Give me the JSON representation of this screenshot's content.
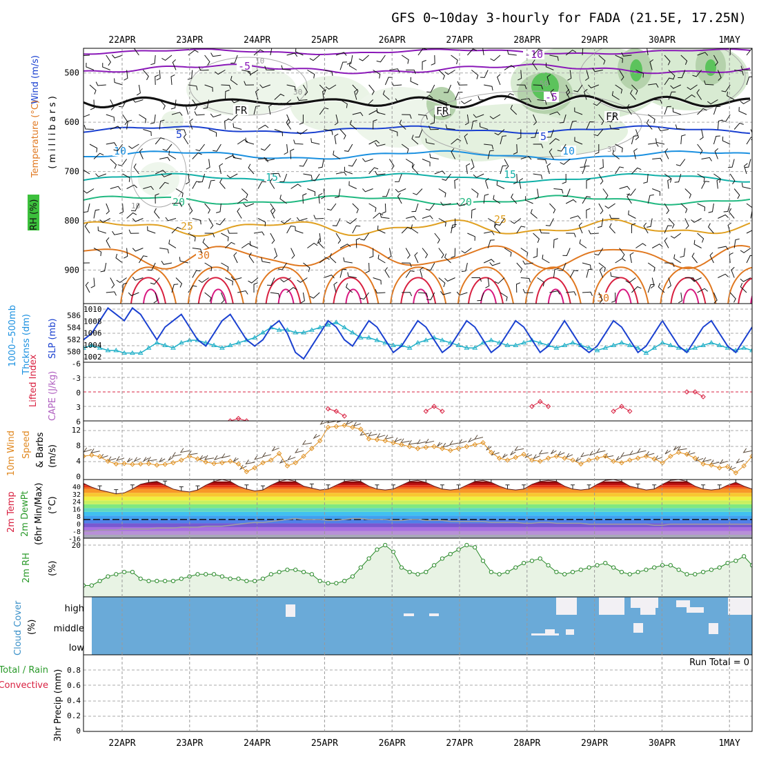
{
  "title": "GFS 0~10day 3-hourly for FADA (21.5E, 17.25N)",
  "dates": [
    "22APR",
    "23APR",
    "24APR",
    "25APR",
    "26APR",
    "27APR",
    "28APR",
    "29APR",
    "30APR",
    "1MAY"
  ],
  "colors": {
    "purple": "#8a18b8",
    "black": "#111111",
    "blue": "#1a40d0",
    "skyblue": "#1a90e0",
    "teal": "#10b0a8",
    "seagreen": "#20b880",
    "gold": "#e0a020",
    "orange": "#e07820",
    "red": "#d82040",
    "magenta": "#d81880",
    "cloud": "#6aaad8",
    "rhfill": "#e8f3e4"
  },
  "panels": {
    "upper": {
      "ylabel_wind": "Wind (m/s)",
      "ylabel_temp": "Temperature (°C)",
      "ylabel_rh": "RH (%)",
      "ylabel_mb": "(millibars)",
      "yticks": [
        "500",
        "600",
        "700",
        "800",
        "900"
      ],
      "temp_labels": [
        "-10",
        "-5",
        "FR",
        "FR",
        "FR",
        "-5",
        "5",
        "5",
        "10",
        "10",
        "15",
        "15",
        "20",
        "20",
        "25",
        "25",
        "30",
        "30"
      ],
      "rh_labels": [
        "10",
        "30",
        "50",
        "10",
        "30"
      ]
    },
    "pressure": {
      "ylabel_thk": "1000~500mb",
      "ylabel_thk2": "Thcknss (dm)",
      "ylabel_slp": "SLP (mb)",
      "ticks_left": [
        "586",
        "584",
        "582",
        "580"
      ],
      "ticks_right": [
        "1010",
        "1008",
        "1006",
        "1004",
        "1002"
      ]
    },
    "li": {
      "ylabel_li": "Lifted Index",
      "ylabel_cape": "CAPE (J/kg)",
      "ticks": [
        "-6",
        "-3",
        "0",
        "3",
        "6"
      ]
    },
    "wind10": {
      "ylabel1": "10m Wind",
      "ylabel2": "Speed",
      "ylabel3": "& Barbs",
      "ylabel4": "(m/s)",
      "ticks": [
        "12",
        "8",
        "4",
        "0"
      ]
    },
    "temp2m": {
      "ylabel1": "2m Temp",
      "ylabel2": "2m DewPt",
      "ylabel3": "(6hr Min/Max)",
      "ylabel4": "(°C)",
      "ticks": [
        "40",
        "32",
        "24",
        "16",
        "8",
        "0",
        "-8",
        "-16"
      ]
    },
    "rh2m": {
      "ylabel1": "2m RH",
      "ylabel2": "(%)",
      "ticks": [
        "20"
      ]
    },
    "cloud": {
      "ylabel1": "Cloud Cover",
      "ylabel2": "(%)",
      "levels": [
        "high",
        "middle",
        "low"
      ]
    },
    "precip": {
      "ylabel1": "Total / Rain",
      "ylabel2": "Convective",
      "ylabel3": "3hr Precip (mm)",
      "ticks": [
        "0.8",
        "0.6",
        "0.4",
        "0.2",
        "0"
      ],
      "run_total": "Run Total = 0"
    }
  },
  "chart_data": {
    "type": "line",
    "x_unit": "3-hourly steps from 21APR 12Z",
    "slp_mb": [
      1005,
      1006,
      1008,
      1010,
      1009,
      1008,
      1010,
      1009,
      1007,
      1005,
      1007,
      1008,
      1009,
      1007,
      1005,
      1004,
      1006,
      1008,
      1009,
      1007,
      1005,
      1004,
      1005,
      1007,
      1008,
      1006,
      1003,
      1002,
      1004,
      1006,
      1008,
      1007,
      1005,
      1004,
      1006,
      1008,
      1007,
      1005,
      1003,
      1004,
      1006,
      1008,
      1007,
      1005,
      1003,
      1004,
      1006,
      1008,
      1007,
      1005,
      1003,
      1004,
      1006,
      1008,
      1007,
      1005,
      1003,
      1004,
      1006,
      1008,
      1006,
      1004,
      1003,
      1004,
      1006,
      1008,
      1007,
      1005,
      1003,
      1004,
      1006,
      1008,
      1006,
      1004,
      1003,
      1005,
      1007,
      1008,
      1006,
      1004,
      1003,
      1005,
      1007
    ],
    "thickness_dm": [
      582,
      582.5,
      582,
      581.5,
      581.5,
      581,
      581,
      581,
      582,
      583,
      582.5,
      582,
      583,
      583.5,
      583.5,
      583,
      582.5,
      582,
      582.5,
      583,
      583.5,
      584,
      585,
      586,
      585.5,
      585.5,
      585,
      585,
      585.5,
      586,
      586.5,
      587,
      586,
      585,
      584,
      584,
      583.5,
      583,
      582.5,
      582.5,
      582,
      583,
      583.5,
      584,
      583.5,
      583,
      582.5,
      582,
      582,
      583,
      583.5,
      583,
      582.5,
      582.5,
      583,
      583.5,
      583,
      582.5,
      582,
      582.5,
      583,
      582.5,
      582,
      581.5,
      582,
      582.5,
      583,
      582.5,
      582,
      581,
      582,
      583,
      582.5,
      582,
      581.5,
      582,
      582.5,
      583,
      582.5,
      582,
      581.5,
      582,
      581.5
    ],
    "lifted_index": [
      null,
      null,
      null,
      null,
      null,
      null,
      null,
      null,
      null,
      null,
      null,
      null,
      null,
      null,
      null,
      null,
      null,
      null,
      6,
      5.5,
      6,
      null,
      null,
      null,
      null,
      null,
      null,
      null,
      null,
      null,
      3.5,
      4,
      5,
      null,
      null,
      null,
      null,
      null,
      null,
      null,
      null,
      null,
      4,
      3,
      4,
      null,
      null,
      null,
      null,
      null,
      null,
      null,
      null,
      null,
      null,
      3,
      2,
      3,
      null,
      null,
      null,
      null,
      null,
      null,
      null,
      4,
      3,
      4,
      null,
      null,
      null,
      null,
      null,
      null,
      0,
      0,
      1,
      null,
      null,
      null,
      null,
      null,
      null
    ],
    "wind10_ms": [
      5.5,
      5.8,
      5.4,
      4.2,
      3.5,
      3.6,
      3.4,
      3.5,
      3.6,
      3.2,
      3.4,
      3.8,
      4.5,
      5.5,
      4.8,
      4.0,
      3.6,
      3.8,
      4.2,
      3.5,
      1.5,
      2.5,
      3.8,
      4.5,
      6.2,
      3.0,
      3.8,
      5.5,
      7.5,
      9.5,
      13,
      13.2,
      13.5,
      13,
      12.5,
      10,
      9.8,
      9.5,
      9,
      8.5,
      8,
      7.5,
      7.8,
      8,
      7.5,
      7,
      7.5,
      8,
      8.5,
      9,
      6.5,
      5,
      4.5,
      5.2,
      6,
      4.5,
      4.2,
      5,
      5.5,
      5,
      4.5,
      3.5,
      4.5,
      5,
      5.5,
      4.2,
      3.8,
      4.5,
      5,
      5.5,
      4.8,
      3.8,
      5.5,
      6.5,
      6,
      5,
      3.5,
      3.2,
      2.5,
      2.8,
      1.2,
      3,
      5.5
    ],
    "temp2m_c": [
      38,
      34,
      31,
      29,
      27,
      28,
      32,
      37,
      39,
      40,
      36,
      32,
      30,
      29,
      31,
      36,
      40,
      42,
      40,
      35,
      32,
      30,
      31,
      36,
      40,
      42,
      40,
      35,
      33,
      31,
      32,
      36,
      40,
      41,
      40,
      35,
      32,
      31,
      32,
      36,
      40,
      41,
      39,
      35,
      32,
      31,
      32,
      36,
      40,
      41,
      39,
      35,
      32,
      31,
      32,
      37,
      40,
      41,
      40,
      35,
      32,
      31,
      32,
      37,
      41,
      42,
      40,
      35,
      33,
      31,
      32,
      37,
      41,
      42,
      40,
      35,
      32,
      31,
      32,
      36,
      39,
      35,
      32
    ],
    "dewpt2m_c": [
      -12,
      -12,
      -11,
      -11,
      -11,
      -10,
      -10,
      -10,
      -10,
      -9,
      -9,
      -9,
      -8,
      -8,
      -8,
      -7,
      -7,
      -7,
      -6,
      -5,
      -4,
      -3,
      -3,
      -2,
      -1,
      0,
      1,
      0,
      0,
      0,
      -1,
      -1,
      0,
      1,
      1,
      0,
      0,
      0,
      -1,
      -1,
      0,
      0,
      -1,
      -1,
      -1,
      -2,
      -2,
      -2,
      -2,
      -2,
      -3,
      -3,
      -3,
      -3,
      -4,
      -4,
      -3,
      -3,
      -4,
      -4,
      -4,
      -4,
      -5,
      -5,
      -5,
      -5,
      -5,
      -5,
      -5,
      -5,
      -6,
      -6,
      -5,
      -5,
      -5,
      -5,
      -5,
      -5,
      -5,
      -5,
      -5,
      -5,
      -5
    ],
    "rh2m_pct": [
      2,
      2,
      4,
      6,
      7,
      8,
      8,
      5,
      4,
      4,
      4,
      4,
      5,
      6,
      7,
      7,
      7,
      6,
      5,
      5,
      4,
      4,
      5,
      7,
      8,
      9,
      9,
      8,
      7,
      4,
      3,
      3,
      4,
      6,
      10,
      14,
      18,
      20,
      17,
      10,
      8,
      7,
      8,
      11,
      14,
      16,
      18,
      20,
      19,
      13,
      8,
      7,
      8,
      10,
      12,
      13,
      14,
      11,
      8,
      7,
      8,
      9,
      10,
      11,
      12,
      10,
      8,
      7,
      8,
      9,
      10,
      11,
      11,
      9,
      7,
      7,
      8,
      9,
      10,
      12,
      13,
      15,
      11
    ],
    "precip_mm": [],
    "run_total_mm": 0
  }
}
